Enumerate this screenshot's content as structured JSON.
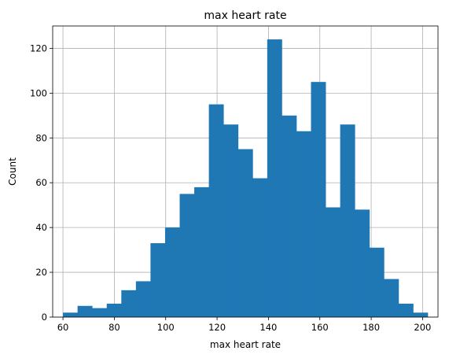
{
  "chart_data": {
    "type": "bar",
    "subtype": "histogram",
    "title": "max heart rate",
    "xlabel": "max heart rate",
    "ylabel": "Count",
    "xlim": [
      56,
      206
    ],
    "ylim": [
      0,
      130
    ],
    "xticks": [
      60,
      80,
      100,
      120,
      140,
      160,
      180,
      200
    ],
    "yticks": [
      0,
      20,
      40,
      60,
      80,
      100,
      120
    ],
    "grid": true,
    "bar_color": "#1f77b4",
    "bin_edges": [
      60,
      65.68,
      71.36,
      77.04,
      82.72,
      88.4,
      94.08,
      99.76,
      105.44,
      111.12,
      116.8,
      122.48,
      128.16,
      133.84,
      139.52,
      145.2,
      150.88,
      156.56,
      162.24,
      167.92,
      173.6,
      179.28,
      184.96,
      190.64,
      196.32,
      202
    ],
    "counts": [
      2,
      5,
      4,
      6,
      12,
      16,
      33,
      40,
      55,
      58,
      95,
      86,
      75,
      62,
      124,
      90,
      83,
      105,
      49,
      86,
      48,
      31,
      17,
      6,
      2
    ]
  }
}
